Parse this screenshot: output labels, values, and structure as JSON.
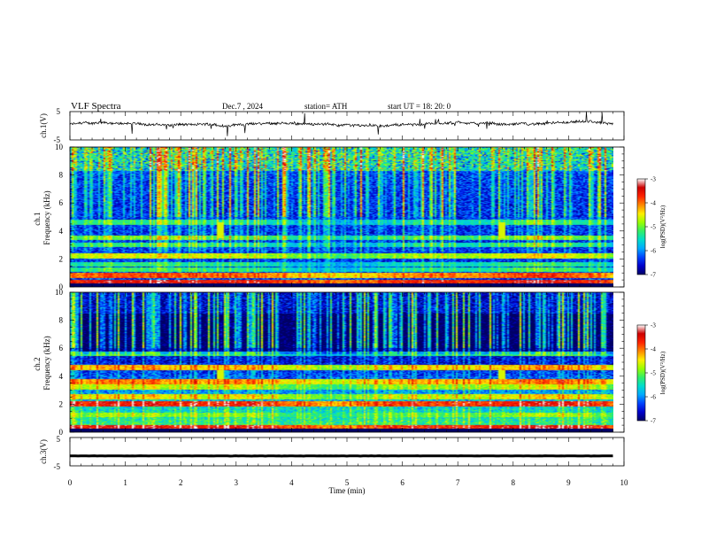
{
  "header": {
    "title": "VLF  Spectra",
    "date": "Dec.7  , 2024",
    "station": "station= ATH",
    "start": "start  UT  =   18: 20: 0"
  },
  "chart_data": [
    {
      "type": "line",
      "name": "ch1-waveform",
      "ylabel": "ch.1(V)",
      "ylim": [
        -5,
        5
      ],
      "yticks": [
        "5",
        "-5"
      ],
      "xlim": [
        0,
        10
      ],
      "x_extent": 9.8,
      "baseline": 0.5,
      "noise_amplitude": 0.8,
      "spike_amplitude": 3.5
    },
    {
      "type": "heatmap",
      "name": "ch1-spectrogram",
      "ylabel": "ch.1\nFrequency  (kHz)",
      "ylabel_lines": [
        "ch.1",
        "Frequency  (kHz)"
      ],
      "ylim": [
        0,
        10
      ],
      "yticks": [
        "0",
        "2",
        "4",
        "6",
        "8",
        "10"
      ],
      "xlim": [
        0,
        10
      ],
      "x_extent": 9.8,
      "value_label": "log(PSD)(V²/Hz)",
      "zlim": [
        -7,
        -3
      ],
      "colorbar_ticks": [
        "-3",
        "-4",
        "-5",
        "-6",
        "-7"
      ],
      "bands_khz": [
        {
          "f": 0.3,
          "level": -3.8
        },
        {
          "f": 0.8,
          "level": -4.2
        },
        {
          "f": 1.2,
          "level": -5.5
        },
        {
          "f": 1.6,
          "level": -5.6
        },
        {
          "f": 2.2,
          "level": -4.9
        },
        {
          "f": 3.0,
          "level": -5.6
        },
        {
          "f": 3.5,
          "level": -5.3
        },
        {
          "f": 4.6,
          "level": -5.6
        }
      ],
      "bright_events_min": [
        2.7,
        7.8
      ]
    },
    {
      "type": "heatmap",
      "name": "ch2-spectrogram",
      "ylabel": "ch.2\nFrequency  (kHz)",
      "ylabel_lines": [
        "ch.2",
        "Frequency  (kHz)"
      ],
      "ylim": [
        0,
        10
      ],
      "yticks": [
        "0",
        "2",
        "4",
        "6",
        "8",
        "10"
      ],
      "xlim": [
        0,
        10
      ],
      "x_extent": 9.8,
      "value_label": "log(PSD)(V²/Hz)",
      "zlim": [
        -7,
        -3
      ],
      "colorbar_ticks": [
        "-3",
        "-4",
        "-5",
        "-6",
        "-7"
      ],
      "bands_khz": [
        {
          "f": 0.3,
          "level": -3.8
        },
        {
          "f": 1.2,
          "level": -5.2
        },
        {
          "f": 2.0,
          "level": -3.9
        },
        {
          "f": 2.5,
          "level": -4.8
        },
        {
          "f": 3.2,
          "level": -5.0
        },
        {
          "f": 3.6,
          "level": -4.4
        },
        {
          "f": 4.6,
          "level": -4.6
        },
        {
          "f": 5.6,
          "level": -5.5
        }
      ],
      "bright_events_min": [
        2.7,
        7.8
      ]
    },
    {
      "type": "line",
      "name": "ch3-waveform",
      "ylabel": "ch.3(V)",
      "ylim": [
        -5,
        5
      ],
      "yticks": [
        "5",
        "-5"
      ],
      "xlim": [
        0,
        10
      ],
      "x_extent": 9.8,
      "baseline": -1.5,
      "noise_amplitude": 0.1,
      "xlabel": "Time  (min)",
      "xticks": [
        "0",
        "1",
        "2",
        "3",
        "4",
        "5",
        "6",
        "7",
        "8",
        "9",
        "10"
      ]
    }
  ],
  "colormap": [
    "#000066",
    "#0000cc",
    "#0044ff",
    "#00aaff",
    "#00ddcc",
    "#33ee66",
    "#99ff00",
    "#ffee00",
    "#ff8800",
    "#ff2200",
    "#cc0000",
    "#ffffff"
  ]
}
